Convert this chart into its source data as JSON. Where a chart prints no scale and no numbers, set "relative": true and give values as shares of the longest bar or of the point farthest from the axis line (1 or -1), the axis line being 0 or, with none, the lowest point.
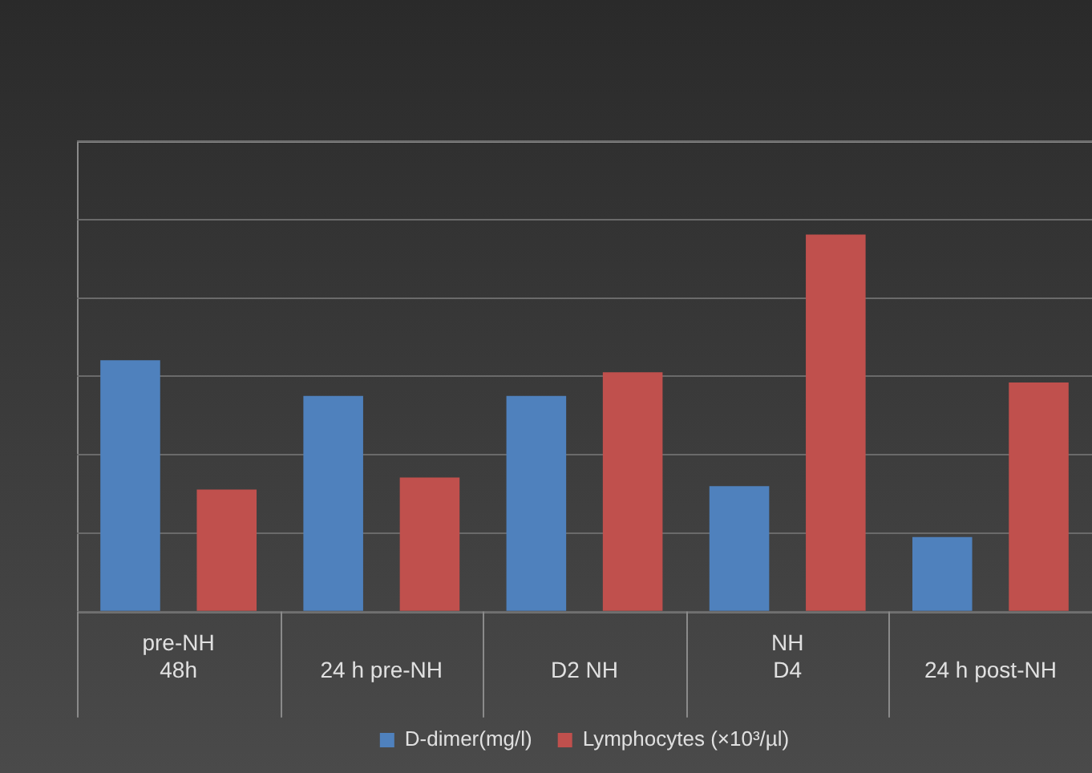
{
  "chart_data": {
    "type": "bar",
    "relative": true,
    "categories": [
      "pre-NH\n48h",
      "24 h pre-NH",
      "D2 NH",
      "NH\nD4",
      "24 h post-NH"
    ],
    "series": [
      {
        "name": "D-dimer(mg/l)",
        "color": "#4f81bd",
        "values": [
          0.667,
          0.572,
          0.572,
          0.333,
          0.198
        ]
      },
      {
        "name": "Lymphocytes (×10³/µl)",
        "color": "#c0504d",
        "values": [
          0.324,
          0.356,
          0.635,
          1,
          0.608
        ]
      }
    ],
    "grid": "y",
    "legend": "bottom"
  }
}
